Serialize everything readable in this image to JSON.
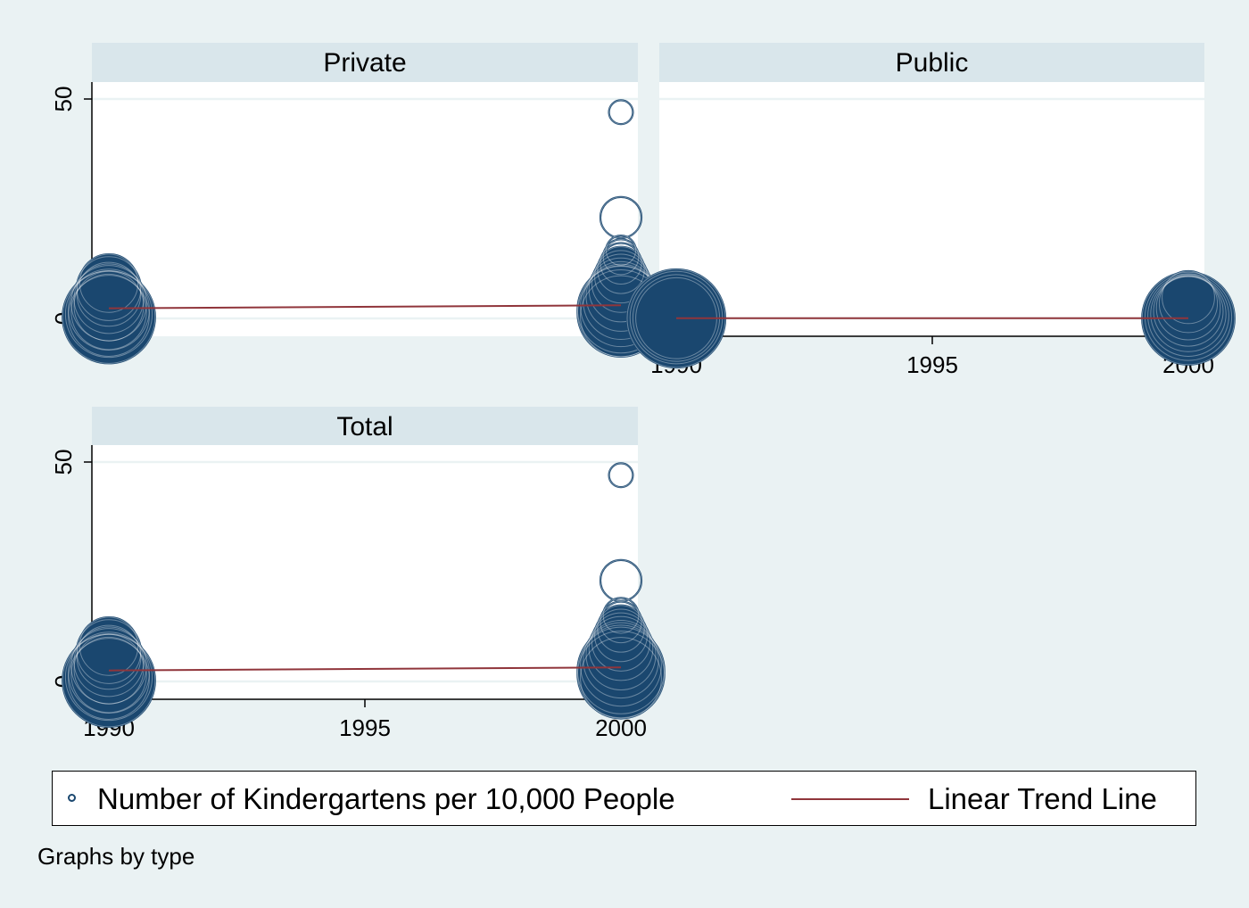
{
  "chart_data": {
    "type": "scatter",
    "subtitle_note": "Graphs by type",
    "ylim": [
      -4,
      51
    ],
    "y_ticks": [
      0,
      50
    ],
    "xlim": [
      1989.7,
      2000.3
    ],
    "x_ticks": [
      1990,
      1995,
      2000
    ],
    "grid": true,
    "legend_position": "bottom",
    "legend": [
      {
        "label": "Number of Kindergartens per 10,000 People",
        "kind": "marker",
        "color": "#1a476f"
      },
      {
        "label": "Linear Trend Line",
        "kind": "line",
        "color": "#90353b"
      }
    ],
    "panels": [
      {
        "title": "Private",
        "show_x_axis": false,
        "points": [
          {
            "x": 1990,
            "y": 0.3,
            "w": 14
          },
          {
            "x": 1990,
            "y": 0.6,
            "w": 12
          },
          {
            "x": 1990,
            "y": 1.0,
            "w": 13
          },
          {
            "x": 1990,
            "y": 1.5,
            "w": 11
          },
          {
            "x": 1990,
            "y": 2.0,
            "w": 12
          },
          {
            "x": 1990,
            "y": 2.8,
            "w": 10
          },
          {
            "x": 1990,
            "y": 3.5,
            "w": 11
          },
          {
            "x": 1990,
            "y": 4.5,
            "w": 10
          },
          {
            "x": 1990,
            "y": 5.5,
            "w": 9
          },
          {
            "x": 1990,
            "y": 6.8,
            "w": 9
          },
          {
            "x": 1990,
            "y": 8.0,
            "w": 8
          },
          {
            "x": 2000,
            "y": 47.0,
            "w": 2
          },
          {
            "x": 2000,
            "y": 23.0,
            "w": 5
          },
          {
            "x": 2000,
            "y": 15.5,
            "w": 3
          },
          {
            "x": 2000,
            "y": 14.0,
            "w": 4
          },
          {
            "x": 2000,
            "y": 12.5,
            "w": 5
          },
          {
            "x": 2000,
            "y": 11.0,
            "w": 6
          },
          {
            "x": 2000,
            "y": 9.5,
            "w": 7
          },
          {
            "x": 2000,
            "y": 8.0,
            "w": 8
          },
          {
            "x": 2000,
            "y": 6.5,
            "w": 9
          },
          {
            "x": 2000,
            "y": 5.0,
            "w": 10
          },
          {
            "x": 2000,
            "y": 3.8,
            "w": 11
          },
          {
            "x": 2000,
            "y": 2.8,
            "w": 12
          },
          {
            "x": 2000,
            "y": 2.0,
            "w": 13
          },
          {
            "x": 2000,
            "y": 1.2,
            "w": 13
          },
          {
            "x": 2000,
            "y": 0.5,
            "w": 12
          }
        ],
        "trend": [
          {
            "x": 1990,
            "y": 2.3
          },
          {
            "x": 2000,
            "y": 3.0
          }
        ]
      },
      {
        "title": "Public",
        "show_x_axis": true,
        "points": [
          {
            "x": 1990,
            "y": 0.0,
            "w": 15
          },
          {
            "x": 1990,
            "y": 0.1,
            "w": 13
          },
          {
            "x": 1990,
            "y": 0.2,
            "w": 14
          },
          {
            "x": 1990,
            "y": 0.05,
            "w": 12
          },
          {
            "x": 2000,
            "y": 0.0,
            "w": 14
          },
          {
            "x": 2000,
            "y": 0.3,
            "w": 13
          },
          {
            "x": 2000,
            "y": 0.6,
            "w": 12
          },
          {
            "x": 2000,
            "y": 1.0,
            "w": 11
          },
          {
            "x": 2000,
            "y": 1.6,
            "w": 10
          },
          {
            "x": 2000,
            "y": 2.4,
            "w": 9
          },
          {
            "x": 2000,
            "y": 3.4,
            "w": 8
          },
          {
            "x": 2000,
            "y": 4.8,
            "w": 7
          }
        ],
        "trend": [
          {
            "x": 1990,
            "y": 0.05
          },
          {
            "x": 2000,
            "y": 0.05
          }
        ]
      },
      {
        "title": "Total",
        "show_x_axis": true,
        "points": [
          {
            "x": 1990,
            "y": 0.2,
            "w": 14
          },
          {
            "x": 1990,
            "y": 0.6,
            "w": 12
          },
          {
            "x": 1990,
            "y": 1.0,
            "w": 13
          },
          {
            "x": 1990,
            "y": 1.5,
            "w": 11
          },
          {
            "x": 1990,
            "y": 2.0,
            "w": 12
          },
          {
            "x": 1990,
            "y": 2.8,
            "w": 10
          },
          {
            "x": 1990,
            "y": 3.5,
            "w": 11
          },
          {
            "x": 1990,
            "y": 4.5,
            "w": 10
          },
          {
            "x": 1990,
            "y": 5.5,
            "w": 9
          },
          {
            "x": 1990,
            "y": 6.8,
            "w": 9
          },
          {
            "x": 1990,
            "y": 8.0,
            "w": 8
          },
          {
            "x": 2000,
            "y": 47.0,
            "w": 2
          },
          {
            "x": 2000,
            "y": 23.0,
            "w": 5
          },
          {
            "x": 2000,
            "y": 15.0,
            "w": 4
          },
          {
            "x": 2000,
            "y": 13.5,
            "w": 5
          },
          {
            "x": 2000,
            "y": 12.0,
            "w": 6
          },
          {
            "x": 2000,
            "y": 10.5,
            "w": 7
          },
          {
            "x": 2000,
            "y": 9.0,
            "w": 8
          },
          {
            "x": 2000,
            "y": 7.5,
            "w": 9
          },
          {
            "x": 2000,
            "y": 6.0,
            "w": 10
          },
          {
            "x": 2000,
            "y": 4.8,
            "w": 11
          },
          {
            "x": 2000,
            "y": 3.6,
            "w": 12
          },
          {
            "x": 2000,
            "y": 2.5,
            "w": 13
          },
          {
            "x": 2000,
            "y": 1.6,
            "w": 13
          },
          {
            "x": 2000,
            "y": 0.8,
            "w": 12
          }
        ],
        "trend": [
          {
            "x": 1990,
            "y": 2.5
          },
          {
            "x": 2000,
            "y": 3.2
          }
        ]
      }
    ]
  }
}
